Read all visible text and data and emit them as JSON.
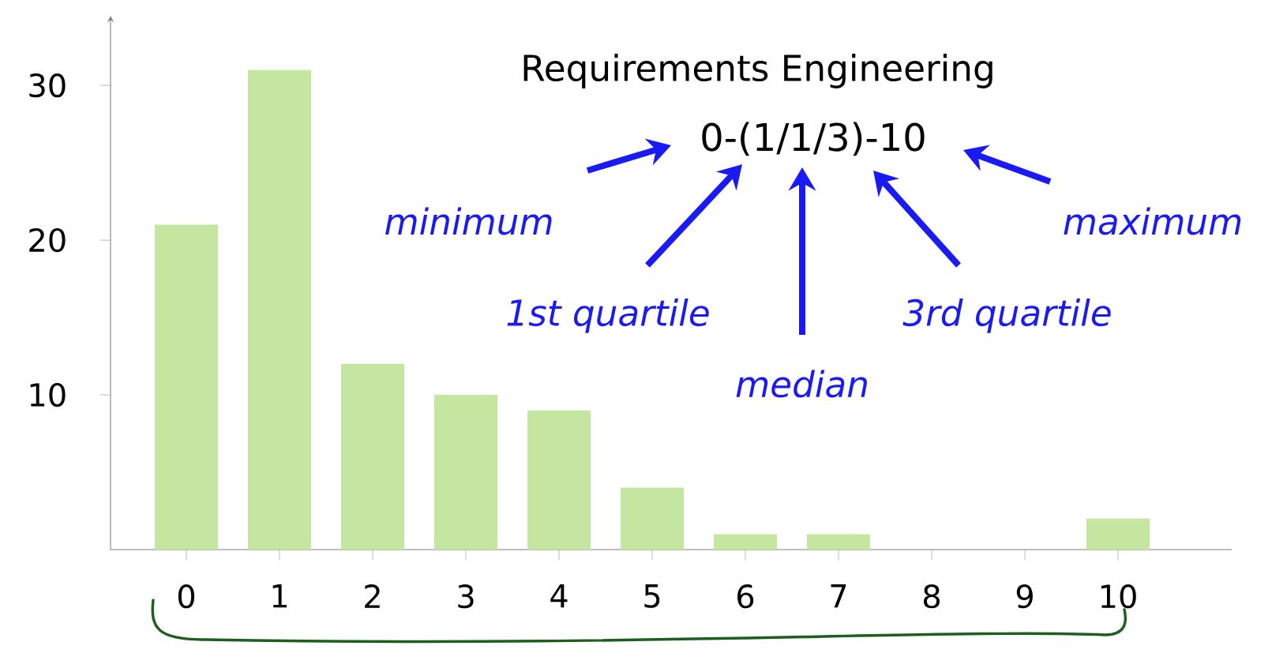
{
  "chart_data": {
    "type": "bar",
    "title": "Requirements Engineering",
    "categories": [
      "0",
      "1",
      "2",
      "3",
      "4",
      "5",
      "6",
      "7",
      "8",
      "9",
      "10"
    ],
    "values": [
      21,
      31,
      12,
      10,
      9,
      4,
      1,
      1,
      0,
      0,
      2
    ],
    "color": "#c5e6a0",
    "ylim": [
      0,
      34.5
    ],
    "yticks": [
      10,
      20,
      30
    ],
    "grid": false,
    "annotations": [
      "0-(1/1/3)-10",
      "minimum",
      "1st quartile",
      "median",
      "3rd quartile",
      "maximum"
    ]
  }
}
